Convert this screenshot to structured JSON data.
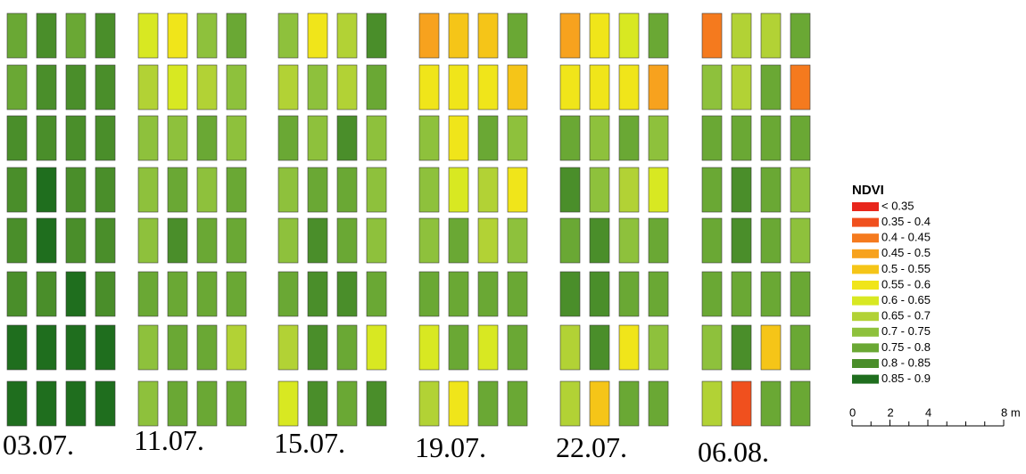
{
  "panels": [
    {
      "date": "03.07.",
      "plots": [
        [
          9,
          10,
          9,
          10
        ],
        [
          9,
          10,
          10,
          10
        ],
        [
          10,
          10,
          10,
          10
        ],
        [
          10,
          11,
          10,
          10
        ],
        [
          10,
          11,
          10,
          10
        ],
        [
          10,
          10,
          11,
          10
        ],
        [
          11,
          11,
          11,
          11
        ],
        [
          11,
          11,
          11,
          11
        ]
      ]
    },
    {
      "date": "11.07.",
      "plots": [
        [
          6,
          5,
          8,
          9
        ],
        [
          7,
          6,
          7,
          8
        ],
        [
          8,
          8,
          9,
          8
        ],
        [
          8,
          9,
          8,
          9
        ],
        [
          8,
          10,
          9,
          9
        ],
        [
          9,
          9,
          9,
          9
        ],
        [
          8,
          9,
          9,
          7
        ],
        [
          8,
          9,
          9,
          9
        ]
      ]
    },
    {
      "date": "15.07.",
      "plots": [
        [
          8,
          5,
          7,
          10
        ],
        [
          7,
          8,
          7,
          9
        ],
        [
          9,
          8,
          10,
          8
        ],
        [
          8,
          9,
          9,
          8
        ],
        [
          8,
          10,
          9,
          8
        ],
        [
          9,
          10,
          10,
          9
        ],
        [
          7,
          10,
          9,
          6
        ],
        [
          6,
          10,
          9,
          10
        ]
      ]
    },
    {
      "date": "19.07.",
      "plots": [
        [
          3,
          4,
          4,
          9
        ],
        [
          5,
          5,
          5,
          4
        ],
        [
          8,
          5,
          9,
          8
        ],
        [
          8,
          6,
          7,
          5
        ],
        [
          8,
          9,
          7,
          8
        ],
        [
          9,
          9,
          9,
          9
        ],
        [
          6,
          9,
          6,
          9
        ],
        [
          7,
          5,
          9,
          9
        ]
      ]
    },
    {
      "date": "22.07.",
      "plots": [
        [
          3,
          5,
          6,
          9
        ],
        [
          5,
          5,
          5,
          3
        ],
        [
          9,
          8,
          9,
          8
        ],
        [
          10,
          8,
          7,
          6
        ],
        [
          9,
          10,
          8,
          9
        ],
        [
          10,
          10,
          9,
          9
        ],
        [
          7,
          10,
          5,
          8
        ],
        [
          7,
          4,
          9,
          9
        ]
      ]
    },
    {
      "date": "06.08.",
      "plots": [
        [
          2,
          7,
          7,
          9
        ],
        [
          8,
          7,
          9,
          2
        ],
        [
          9,
          9,
          9,
          9
        ],
        [
          9,
          10,
          9,
          8
        ],
        [
          9,
          10,
          9,
          8
        ],
        [
          9,
          9,
          9,
          9
        ],
        [
          8,
          10,
          4,
          9
        ],
        [
          7,
          1,
          9,
          9
        ]
      ]
    }
  ],
  "legend": {
    "title": "NDVI",
    "items": [
      {
        "label": "< 0.35",
        "color": "#e8261c"
      },
      {
        "label": "0.35 - 0.4",
        "color": "#f0501e"
      },
      {
        "label": "0.4 - 0.45",
        "color": "#f57a1e"
      },
      {
        "label": "0.45 - 0.5",
        "color": "#f7a21e"
      },
      {
        "label": "0.5 - 0.55",
        "color": "#f5c518"
      },
      {
        "label": "0.55 - 0.6",
        "color": "#f0e51a"
      },
      {
        "label": "0.6 - 0.65",
        "color": "#d8e822"
      },
      {
        "label": "0.65 - 0.7",
        "color": "#b2d235"
      },
      {
        "label": "0.7 - 0.75",
        "color": "#8ec13c"
      },
      {
        "label": "0.75 - 0.8",
        "color": "#6aa834"
      },
      {
        "label": "0.8 - 0.85",
        "color": "#4a8e2a"
      },
      {
        "label": "0.85 - 0.9",
        "color": "#1f6e1e"
      }
    ]
  },
  "scale_bar": {
    "lim": [
      0,
      8
    ],
    "ticks": [
      0,
      2,
      4,
      {
        "value": 8,
        "label": "8 m"
      }
    ]
  }
}
